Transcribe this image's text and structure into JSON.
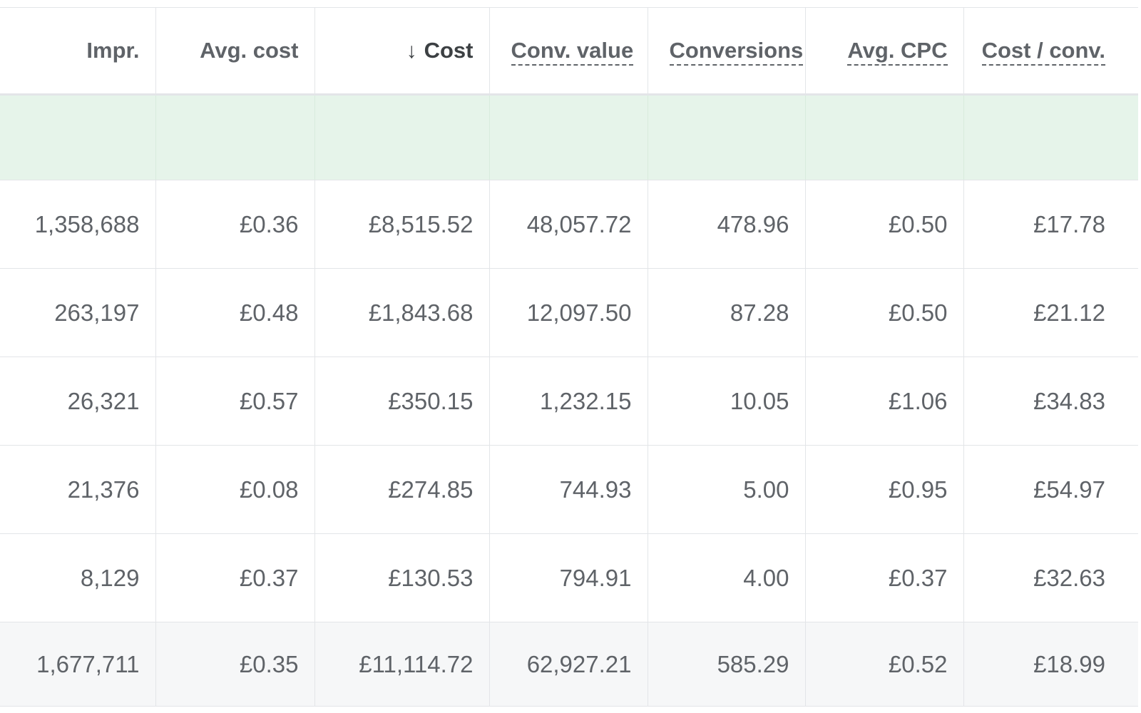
{
  "table": {
    "columns": [
      {
        "label": "Impr.",
        "underlined": false,
        "sorted": false
      },
      {
        "label": "Avg. cost",
        "underlined": false,
        "sorted": false
      },
      {
        "label": "Cost",
        "underlined": false,
        "sorted": true,
        "sort_icon": "arrow-down-icon",
        "sort_glyph": "↓"
      },
      {
        "label": "Conv. value",
        "underlined": true,
        "sorted": false
      },
      {
        "label": "Conversions",
        "underlined": true,
        "sorted": false
      },
      {
        "label": "Avg. CPC",
        "underlined": true,
        "sorted": false
      },
      {
        "label": "Cost / conv.",
        "underlined": true,
        "sorted": false
      }
    ],
    "summary_row_color": "#e6f4ea",
    "rows": [
      [
        "1,358,688",
        "£0.36",
        "£8,515.52",
        "48,057.72",
        "478.96",
        "£0.50",
        "£17.78"
      ],
      [
        "263,197",
        "£0.48",
        "£1,843.68",
        "12,097.50",
        "87.28",
        "£0.50",
        "£21.12"
      ],
      [
        "26,321",
        "£0.57",
        "£350.15",
        "1,232.15",
        "10.05",
        "£1.06",
        "£34.83"
      ],
      [
        "21,376",
        "£0.08",
        "£274.85",
        "744.93",
        "5.00",
        "£0.95",
        "£54.97"
      ],
      [
        "8,129",
        "£0.37",
        "£130.53",
        "794.91",
        "4.00",
        "£0.37",
        "£32.63"
      ]
    ],
    "total": [
      "1,677,711",
      "£0.35",
      "£11,114.72",
      "62,927.21",
      "585.29",
      "£0.52",
      "£18.99"
    ]
  }
}
